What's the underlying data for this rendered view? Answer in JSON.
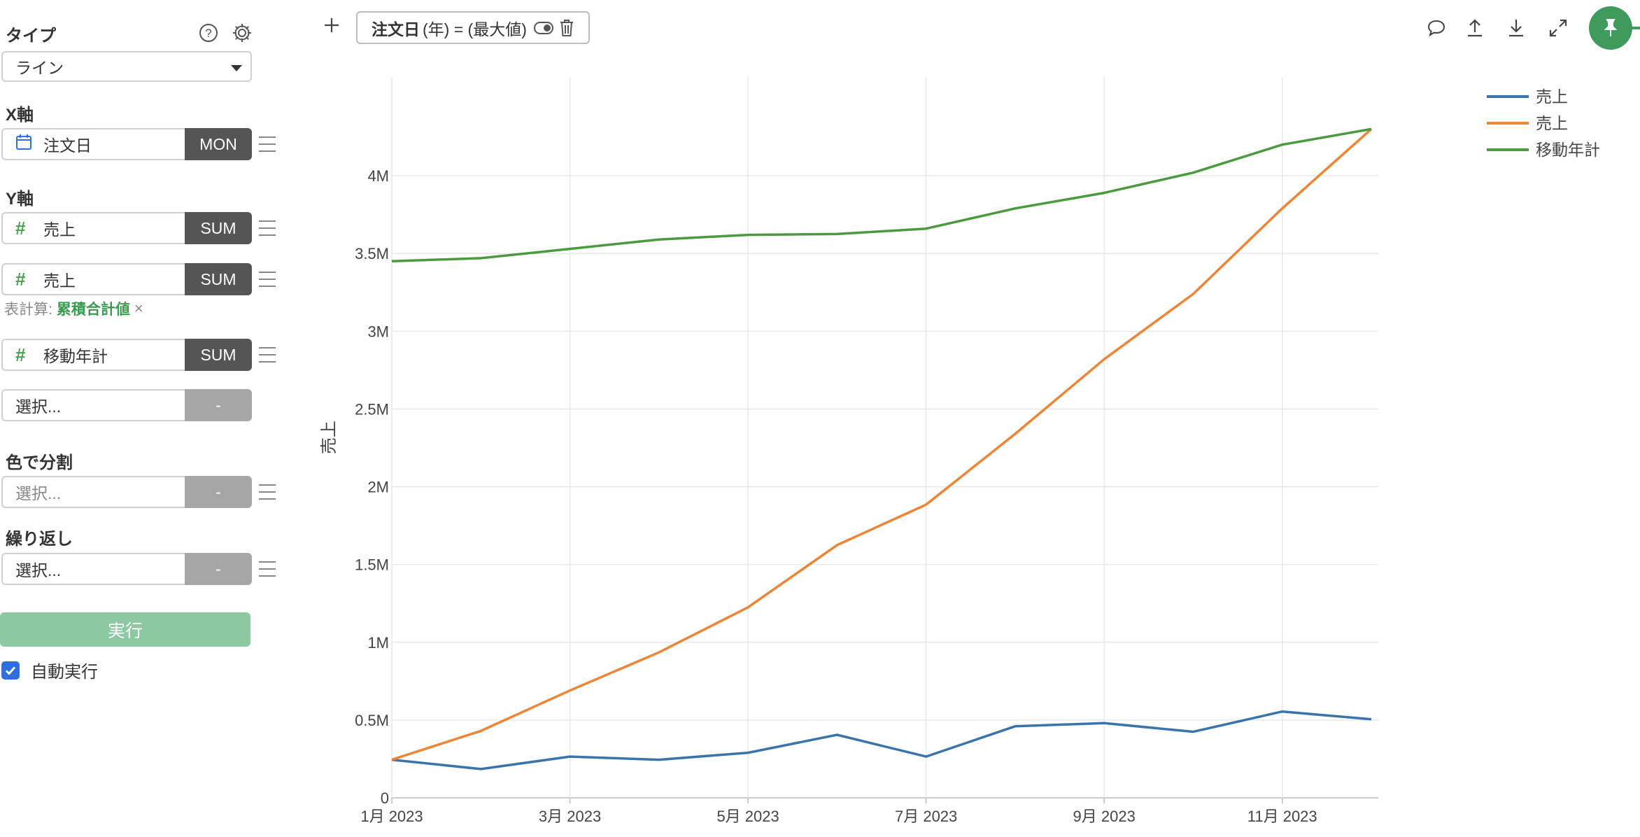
{
  "sidebar": {
    "type_label": "タイプ",
    "chart_type": "ライン",
    "x_axis_label": "X軸",
    "x_field": {
      "name": "注文日",
      "agg": "MON"
    },
    "y_axis_label": "Y軸",
    "y_fields": [
      {
        "name": "売上",
        "agg": "SUM"
      },
      {
        "name": "売上",
        "agg": "SUM"
      },
      {
        "name": "移動年計",
        "agg": "SUM"
      }
    ],
    "calc_label": "表計算:",
    "calc_value": "累積合計値",
    "calc_remove": "×",
    "y_empty": {
      "name": "選択...",
      "agg": "-"
    },
    "color_split_label": "色で分割",
    "color_split": {
      "placeholder": "選択...",
      "agg": "-"
    },
    "repeat_label": "繰り返し",
    "repeat": {
      "name": "選択...",
      "agg": "-"
    },
    "run_label": "実行",
    "auto_run_label": "自動実行",
    "auto_run_checked": true,
    "icons": {
      "help": "help-circle-icon",
      "settings": "gear-icon",
      "calendar": "calendar-icon",
      "number": "hash-icon"
    }
  },
  "toolbar": {
    "filter": {
      "field": "注文日",
      "rest": "(年) = (最大値)"
    },
    "icons": [
      "plus-icon",
      "eye-toggle-icon",
      "trash-icon",
      "comment-icon",
      "upload-icon",
      "download-icon",
      "expand-icon",
      "pin-icon"
    ],
    "pin_color": "#3f9b5c"
  },
  "chart_data": {
    "type": "line",
    "x": [
      "2023-01",
      "2023-02",
      "2023-03",
      "2023-04",
      "2023-05",
      "2023-06",
      "2023-07",
      "2023-08",
      "2023-09",
      "2023-10",
      "2023-11",
      "2023-12"
    ],
    "x_tick_labels": [
      "1月 2023",
      "3月 2023",
      "5月 2023",
      "7月 2023",
      "9月 2023",
      "11月 2023"
    ],
    "x_tick_months": [
      1,
      3,
      5,
      7,
      9,
      11
    ],
    "ylabel": "売上",
    "ylim": [
      0,
      4500000
    ],
    "y_ticks": [
      0,
      500000,
      1000000,
      1500000,
      2000000,
      2500000,
      3000000,
      3500000,
      4000000
    ],
    "y_tick_labels": [
      "0",
      "0.5M",
      "1M",
      "1.5M",
      "2M",
      "2.5M",
      "3M",
      "3.5M",
      "4M"
    ],
    "grid": true,
    "legend": "top-right",
    "series": [
      {
        "name": "売上",
        "color": "#3a74ab",
        "values": [
          245000,
          185000,
          265000,
          245000,
          290000,
          405000,
          265000,
          460000,
          480000,
          425000,
          555000,
          505000
        ]
      },
      {
        "name": "売上",
        "color": "#ed8537",
        "values": [
          245000,
          430000,
          690000,
          935000,
          1225000,
          1625000,
          1885000,
          2340000,
          2820000,
          3240000,
          3790000,
          4300000
        ]
      },
      {
        "name": "移動年計",
        "color": "#4c9a3f",
        "values": [
          3450000,
          3470000,
          3530000,
          3590000,
          3620000,
          3625000,
          3660000,
          3790000,
          3890000,
          4020000,
          4200000,
          4300000
        ]
      }
    ]
  }
}
